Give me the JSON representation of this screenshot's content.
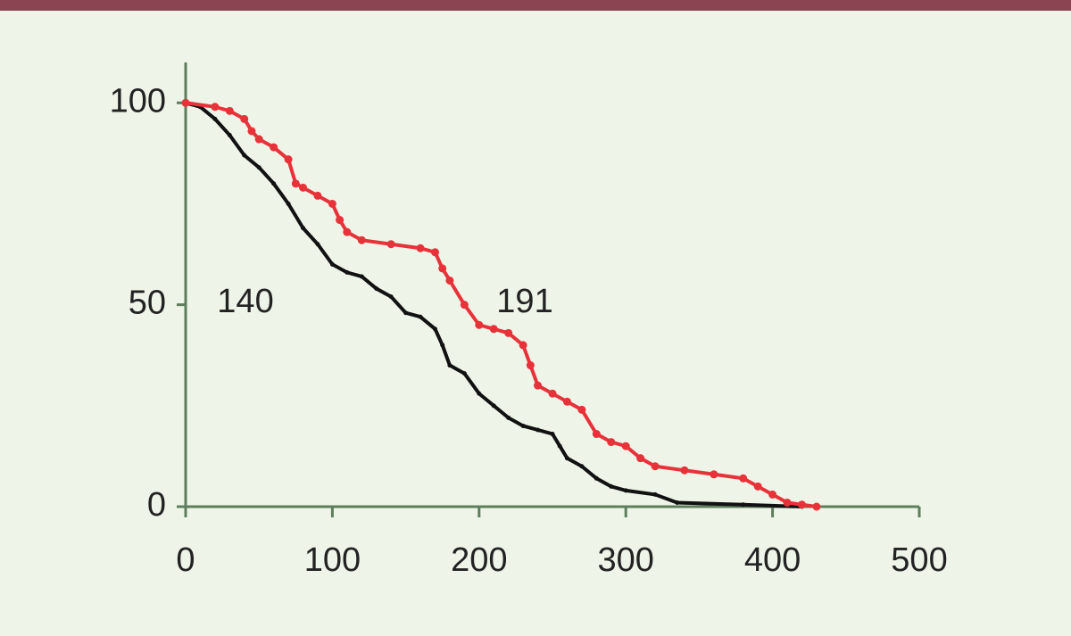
{
  "chart_data": {
    "type": "line",
    "annotations": [
      "140",
      "191"
    ],
    "xlim": [
      0,
      500
    ],
    "xticks": [
      0,
      100,
      200,
      300,
      400,
      500
    ],
    "ylim": [
      0,
      110
    ],
    "yticks": [
      0,
      50,
      100
    ],
    "series": [
      {
        "color": "#111111",
        "x": [
          0,
          10,
          20,
          30,
          40,
          50,
          60,
          70,
          80,
          90,
          100,
          110,
          120,
          130,
          140,
          150,
          160,
          170,
          175,
          180,
          190,
          200,
          210,
          220,
          230,
          240,
          250,
          255,
          260,
          270,
          280,
          290,
          300,
          320,
          335,
          380,
          420
        ],
        "values": [
          100,
          99,
          96,
          92,
          87,
          84,
          80,
          75,
          69,
          65,
          60,
          58,
          57,
          54,
          52,
          48,
          47,
          44,
          40,
          35,
          33,
          28,
          25,
          22,
          20,
          19,
          18,
          15,
          12,
          10,
          7,
          5,
          4,
          3,
          1,
          0.5,
          0
        ]
      },
      {
        "color": "#e8323a",
        "x": [
          0,
          20,
          30,
          40,
          45,
          50,
          60,
          70,
          75,
          80,
          90,
          100,
          105,
          110,
          120,
          140,
          160,
          170,
          175,
          180,
          190,
          200,
          210,
          220,
          230,
          235,
          240,
          250,
          260,
          270,
          280,
          290,
          300,
          310,
          320,
          340,
          360,
          380,
          390,
          400,
          410,
          420,
          430
        ],
        "values": [
          100,
          99,
          98,
          96,
          93,
          91,
          89,
          86,
          80,
          79,
          77,
          75,
          71,
          68,
          66,
          65,
          64,
          63,
          59,
          56,
          50,
          45,
          44,
          43,
          40,
          35,
          30,
          28,
          26,
          24,
          18,
          16,
          15,
          12,
          10,
          9,
          8,
          7,
          5,
          3,
          1,
          0.5,
          0
        ]
      }
    ]
  }
}
